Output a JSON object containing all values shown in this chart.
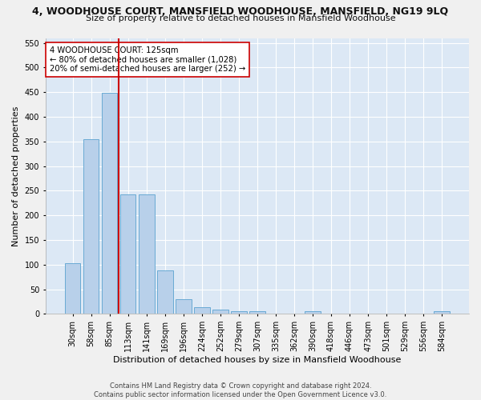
{
  "title_line1": "4, WOODHOUSE COURT, MANSFIELD WOODHOUSE, MANSFIELD, NG19 9LQ",
  "title_line2": "Size of property relative to detached houses in Mansfield Woodhouse",
  "xlabel": "Distribution of detached houses by size in Mansfield Woodhouse",
  "ylabel": "Number of detached properties",
  "categories": [
    "30sqm",
    "58sqm",
    "85sqm",
    "113sqm",
    "141sqm",
    "169sqm",
    "196sqm",
    "224sqm",
    "252sqm",
    "279sqm",
    "307sqm",
    "335sqm",
    "362sqm",
    "390sqm",
    "418sqm",
    "446sqm",
    "473sqm",
    "501sqm",
    "529sqm",
    "556sqm",
    "584sqm"
  ],
  "values": [
    103,
    354,
    449,
    243,
    242,
    88,
    30,
    14,
    9,
    5,
    5,
    0,
    0,
    5,
    0,
    0,
    0,
    0,
    0,
    0,
    5
  ],
  "bar_color": "#b8d0ea",
  "bar_edge_color": "#6aaad4",
  "vline_color": "#cc0000",
  "annotation_text": "4 WOODHOUSE COURT: 125sqm\n← 80% of detached houses are smaller (1,028)\n20% of semi-detached houses are larger (252) →",
  "annotation_box_color": "#ffffff",
  "annotation_box_edge": "#cc0000",
  "ylim": [
    0,
    560
  ],
  "yticks": [
    0,
    50,
    100,
    150,
    200,
    250,
    300,
    350,
    400,
    450,
    500,
    550
  ],
  "plot_background": "#dce8f5",
  "fig_background": "#f0f0f0",
  "grid_color": "#ffffff",
  "footer_line1": "Contains HM Land Registry data © Crown copyright and database right 2024.",
  "footer_line2": "Contains public sector information licensed under the Open Government Licence v3.0.",
  "title_fontsize": 9,
  "subtitle_fontsize": 8,
  "ylabel_fontsize": 8,
  "xlabel_fontsize": 8,
  "tick_fontsize": 7,
  "footer_fontsize": 6
}
